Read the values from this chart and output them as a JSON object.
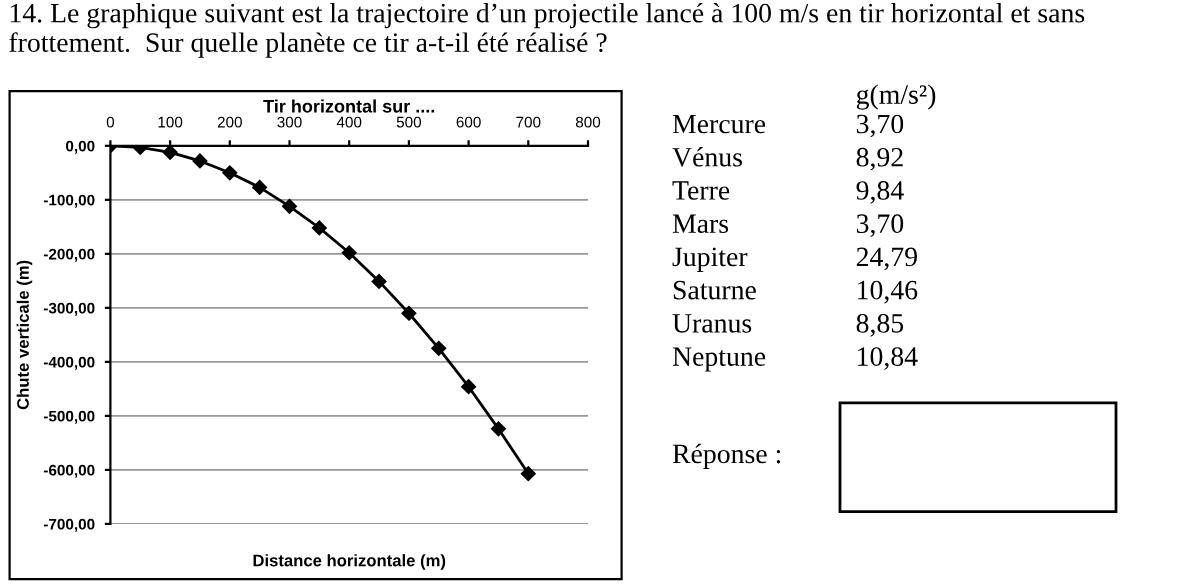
{
  "chart_data": {
    "type": "line",
    "title": "Tir horizontal sur ....",
    "xlabel": "Distance horizontale (m)",
    "ylabel": "Chute verticale (m)",
    "series": [
      {
        "color": "#000000",
        "x": [
          0,
          50,
          100,
          150,
          200,
          250,
          300,
          350,
          400,
          450,
          500,
          550,
          600,
          650,
          700
        ],
        "values": [
          0,
          -3,
          -12,
          -28,
          -50,
          -77,
          -112,
          -152,
          -198,
          -251,
          -310,
          -375,
          -446,
          -524,
          -607
        ]
      }
    ],
    "xlim": [
      0,
      800
    ],
    "xticks": [
      0,
      100,
      200,
      300,
      400,
      500,
      600,
      700,
      800
    ],
    "ylim": [
      -700,
      0
    ],
    "yticks": [
      {
        "value": 0,
        "label": "0,00"
      },
      {
        "value": -100,
        "label": "-100,00"
      },
      {
        "value": -200,
        "label": "-200,00"
      },
      {
        "value": -300,
        "label": "-300,00"
      },
      {
        "value": -400,
        "label": "-400,00"
      },
      {
        "value": -500,
        "label": "-500,00"
      },
      {
        "value": -600,
        "label": "-600,00"
      },
      {
        "value": -700,
        "label": "-700,00"
      }
    ],
    "grid": "y",
    "marker": "diamond",
    "line_style": "solid",
    "legend": false,
    "annotations": [
      "14. Le graphique suivant est la trajectoire d’un projectile lancé à 100 m/s en tir horizontal et sans frottement.  Sur quelle planète ce tir a-t-il été réalisé ?",
      "g(m/s²)",
      "Mercure",
      "3,70",
      "Vénus",
      "8,92",
      "Terre",
      "9,84",
      "Mars",
      "3,70",
      "Jupiter",
      "24,79",
      "Saturne",
      "10,46",
      "Uranus",
      "8,85",
      "Neptune",
      "10,84",
      "Réponse :"
    ]
  }
}
